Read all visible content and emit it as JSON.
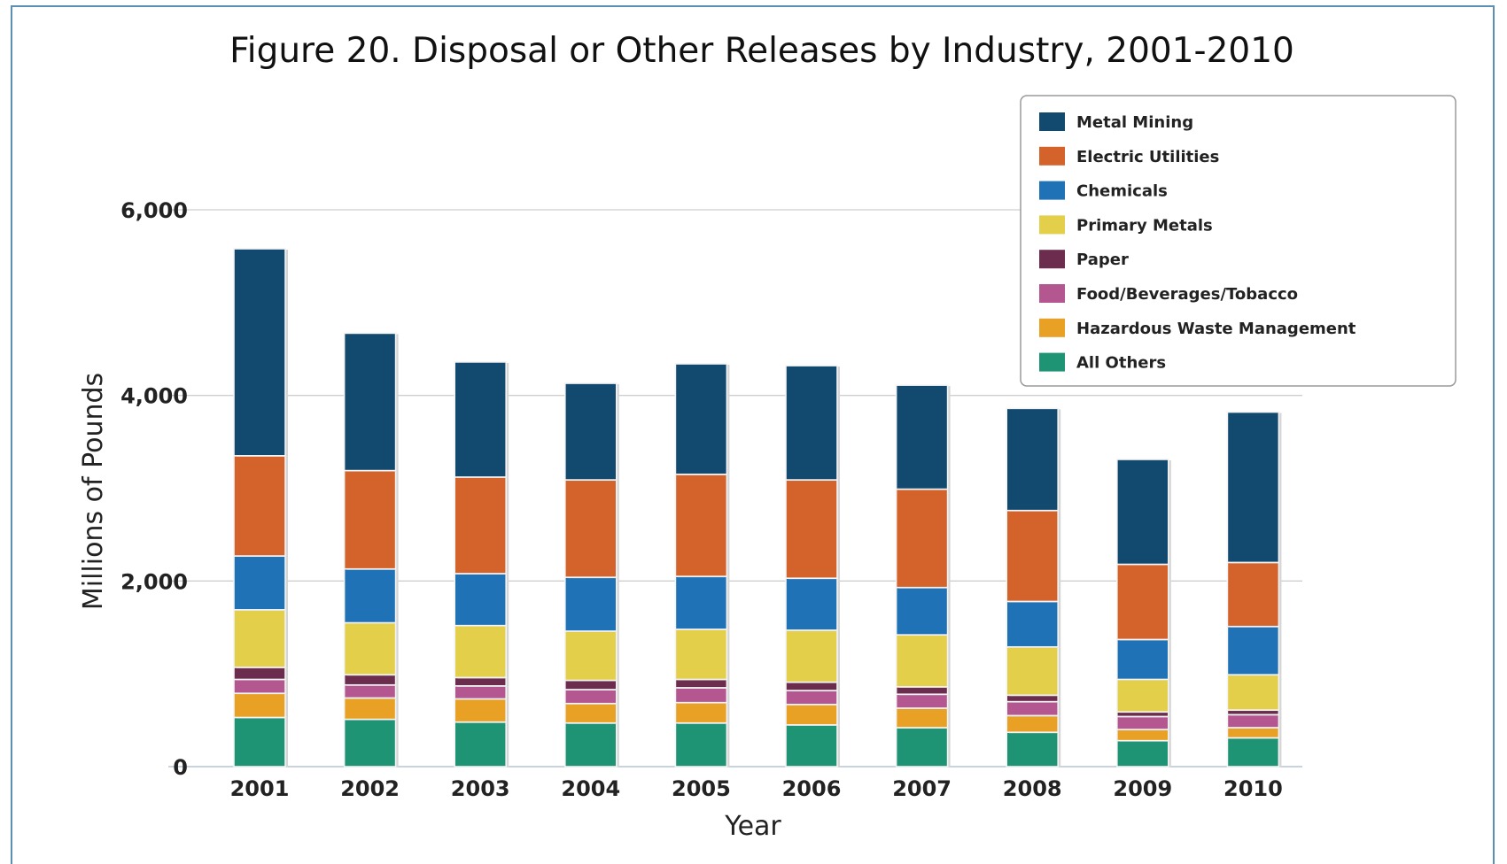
{
  "chart_data": {
    "type": "bar",
    "stacked": true,
    "title": "Figure 20. Disposal or Other Releases by Industry, 2001-2010",
    "xlabel": "Year",
    "ylabel": "Millions of Pounds",
    "ylim": [
      0,
      6000
    ],
    "yticks": [
      0,
      2000,
      4000,
      6000
    ],
    "ytick_labels": [
      "0",
      "2,000",
      "4,000",
      "6,000"
    ],
    "grid": true,
    "legend_position": "top-right",
    "categories": [
      "2001",
      "2002",
      "2003",
      "2004",
      "2005",
      "2006",
      "2007",
      "2008",
      "2009",
      "2010"
    ],
    "series": [
      {
        "name": "All Others",
        "color": "#1e9474",
        "values": [
          530,
          510,
          480,
          470,
          470,
          450,
          420,
          370,
          280,
          310
        ]
      },
      {
        "name": "Hazardous Waste Management",
        "color": "#e8a125",
        "values": [
          260,
          230,
          250,
          210,
          220,
          220,
          210,
          180,
          120,
          110
        ]
      },
      {
        "name": "Food/Beverages/Tobacco",
        "color": "#b45690",
        "values": [
          150,
          140,
          140,
          150,
          160,
          150,
          150,
          150,
          140,
          140
        ]
      },
      {
        "name": "Paper",
        "color": "#6b2c4e",
        "values": [
          130,
          110,
          90,
          100,
          90,
          90,
          80,
          70,
          50,
          50
        ]
      },
      {
        "name": "Primary Metals",
        "color": "#e3cf4a",
        "values": [
          620,
          560,
          560,
          530,
          540,
          560,
          560,
          520,
          350,
          380
        ]
      },
      {
        "name": "Chemicals",
        "color": "#1f72b5",
        "values": [
          580,
          580,
          560,
          580,
          570,
          560,
          510,
          490,
          430,
          520
        ]
      },
      {
        "name": "Electric Utilities",
        "color": "#d4622b",
        "values": [
          1080,
          1060,
          1040,
          1050,
          1100,
          1060,
          1060,
          980,
          810,
          690
        ]
      },
      {
        "name": "Metal Mining",
        "color": "#12496f",
        "values": [
          2230,
          1480,
          1240,
          1040,
          1190,
          1230,
          1120,
          1100,
          1130,
          1620
        ]
      }
    ],
    "legend_order": [
      "Metal Mining",
      "Electric Utilities",
      "Chemicals",
      "Primary Metals",
      "Paper",
      "Food/Beverages/Tobacco",
      "Hazardous Waste Management",
      "All Others"
    ]
  }
}
